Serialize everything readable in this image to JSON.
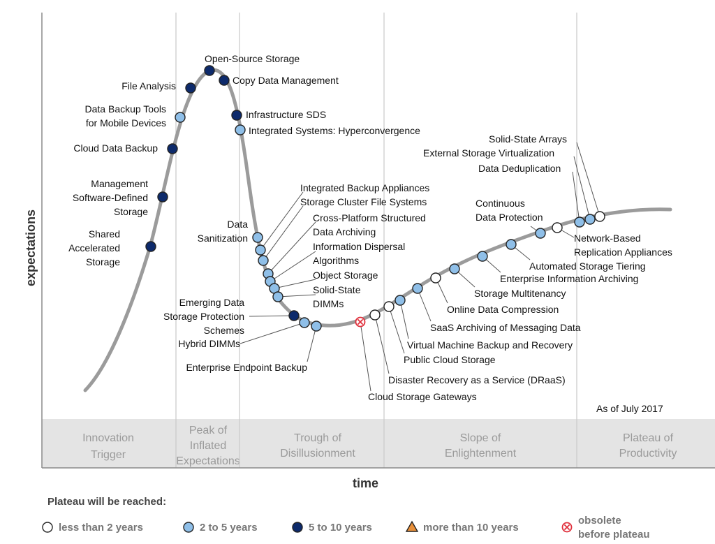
{
  "chart_data": {
    "type": "hype-cycle",
    "ylabel": "expectations",
    "xlabel": "time",
    "as_of": "As of July 2017",
    "phases": [
      {
        "lines": [
          "Innovation",
          "Trigger"
        ]
      },
      {
        "lines": [
          "Peak of",
          "Inflated",
          "Expectations"
        ]
      },
      {
        "lines": [
          "Trough of",
          "Disillusionment"
        ]
      },
      {
        "lines": [
          "Slope of",
          "Enlightenment"
        ]
      },
      {
        "lines": [
          "Plateau of",
          "Productivity"
        ]
      }
    ],
    "categories": [
      {
        "key": "lt2",
        "label": "less than 2 years",
        "color": "#ffffff"
      },
      {
        "key": "2to5",
        "label": "2 to 5 years",
        "color": "#8fbfe8"
      },
      {
        "key": "5to10",
        "label": "5 to 10 years",
        "color": "#0d2a6b"
      },
      {
        "key": "gt10",
        "label": "more than 10 years",
        "color": "#e8903a"
      },
      {
        "key": "obsolete",
        "label_lines": [
          "obsolete",
          "before plateau"
        ],
        "color": "#e0303c"
      }
    ],
    "legend_title": "Plateau will be reached:",
    "technologies": [
      {
        "name": "Shared Accelerated Storage",
        "lines": [
          "Shared",
          "Accelerated",
          "Storage"
        ],
        "cat": "5to10"
      },
      {
        "name": "Management Software-Defined Storage",
        "lines": [
          "Management",
          "Software-Defined",
          "Storage"
        ],
        "cat": "5to10"
      },
      {
        "name": "Cloud Data Backup",
        "lines": [
          "Cloud Data Backup"
        ],
        "cat": "5to10"
      },
      {
        "name": "Data Backup Tools for Mobile Devices",
        "lines": [
          "Data Backup Tools",
          "for Mobile Devices"
        ],
        "cat": "2to5"
      },
      {
        "name": "File Analysis",
        "lines": [
          "File Analysis"
        ],
        "cat": "5to10"
      },
      {
        "name": "Open-Source Storage",
        "lines": [
          "Open-Source Storage"
        ],
        "cat": "5to10"
      },
      {
        "name": "Copy Data Management",
        "lines": [
          "Copy Data Management"
        ],
        "cat": "5to10"
      },
      {
        "name": "Infrastructure SDS",
        "lines": [
          "Infrastructure SDS"
        ],
        "cat": "5to10"
      },
      {
        "name": "Integrated Systems: Hyperconvergence",
        "lines": [
          "Integrated Systems: Hyperconvergence"
        ],
        "cat": "2to5"
      },
      {
        "name": "Data Sanitization",
        "lines": [
          "Data",
          "Sanitization"
        ],
        "cat": "2to5"
      },
      {
        "name": "Integrated Backup Appliances",
        "lines": [
          "Integrated Backup Appliances"
        ],
        "cat": "2to5"
      },
      {
        "name": "Storage Cluster File Systems",
        "lines": [
          "Storage Cluster File Systems"
        ],
        "cat": "2to5"
      },
      {
        "name": "Cross-Platform Structured Data Archiving",
        "lines": [
          "Cross-Platform Structured",
          "Data Archiving"
        ],
        "cat": "2to5"
      },
      {
        "name": "Information Dispersal Algorithms",
        "lines": [
          "Information Dispersal",
          "Algorithms"
        ],
        "cat": "2to5"
      },
      {
        "name": "Object Storage",
        "lines": [
          "Object Storage"
        ],
        "cat": "2to5"
      },
      {
        "name": "Solid-State DIMMs",
        "lines": [
          "Solid-State",
          "DIMMs"
        ],
        "cat": "2to5"
      },
      {
        "name": "Emerging Data Storage Protection Schemes",
        "lines": [
          "Emerging Data",
          "Storage Protection",
          "Schemes"
        ],
        "cat": "5to10"
      },
      {
        "name": "Hybrid DIMMs",
        "lines": [
          "Hybrid DIMMs"
        ],
        "cat": "2to5"
      },
      {
        "name": "Enterprise Endpoint Backup",
        "lines": [
          "Enterprise Endpoint Backup"
        ],
        "cat": "2to5"
      },
      {
        "name": "Cloud Storage Gateways",
        "lines": [
          "Cloud Storage Gateways"
        ],
        "cat": "obsolete"
      },
      {
        "name": "Disaster Recovery as a Service (DRaaS)",
        "lines": [
          "Disaster Recovery as a Service (DRaaS)"
        ],
        "cat": "lt2"
      },
      {
        "name": "Public Cloud Storage",
        "lines": [
          "Public Cloud Storage"
        ],
        "cat": "lt2"
      },
      {
        "name": "Virtual Machine Backup and Recovery",
        "lines": [
          "Virtual Machine Backup and Recovery"
        ],
        "cat": "2to5"
      },
      {
        "name": "SaaS Archiving of Messaging Data",
        "lines": [
          "SaaS Archiving of Messaging Data"
        ],
        "cat": "2to5"
      },
      {
        "name": "Online Data Compression",
        "lines": [
          "Online Data Compression"
        ],
        "cat": "lt2"
      },
      {
        "name": "Storage Multitenancy",
        "lines": [
          "Storage Multitenancy"
        ],
        "cat": "2to5"
      },
      {
        "name": "Enterprise Information Archiving",
        "lines": [
          "Enterprise Information Archiving"
        ],
        "cat": "2to5"
      },
      {
        "name": "Automated Storage Tiering",
        "lines": [
          "Automated Storage Tiering"
        ],
        "cat": "2to5"
      },
      {
        "name": "Continuous Data Protection",
        "lines": [
          "Continuous",
          "Data Protection"
        ],
        "cat": "2to5"
      },
      {
        "name": "Network-Based Replication Appliances",
        "lines": [
          "Network-Based",
          "Replication Appliances"
        ],
        "cat": "lt2"
      },
      {
        "name": "Data Deduplication",
        "lines": [
          "Data Deduplication"
        ],
        "cat": "2to5"
      },
      {
        "name": "External Storage Virtualization",
        "lines": [
          "External Storage Virtualization"
        ],
        "cat": "2to5"
      },
      {
        "name": "Solid-State Arrays",
        "lines": [
          "Solid-State Arrays"
        ],
        "cat": "lt2"
      }
    ]
  }
}
